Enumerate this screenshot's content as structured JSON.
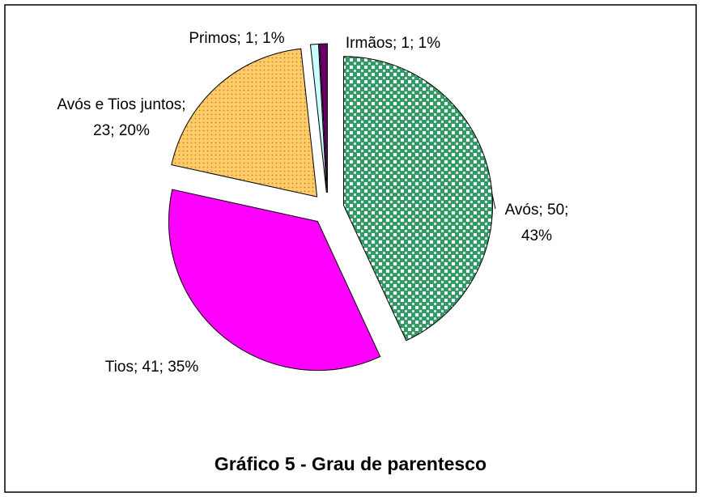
{
  "chart_data": {
    "type": "pie",
    "title": "Gráfico 5 - Grau de parentesco",
    "values": [
      50,
      41,
      23,
      1,
      1
    ],
    "value_labels": [
      "Avós; 50; 43%",
      "Tios; 41; 35%",
      "Avós e Tios juntos; 23; 20%",
      "Primos; 1; 1%",
      "Irmãos; 1; 1%"
    ],
    "colors": [
      "#339966",
      "#ff00ff",
      "#ffcc66",
      "#ccffff",
      "#660066"
    ]
  }
}
